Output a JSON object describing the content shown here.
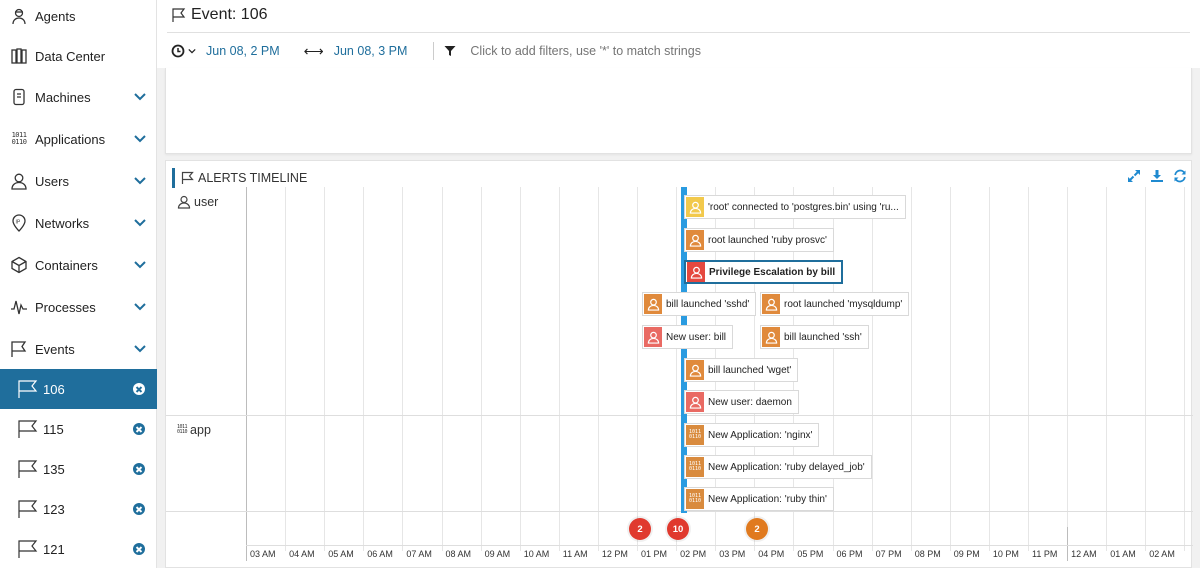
{
  "sidebar": {
    "items": [
      {
        "label": "Agents",
        "icon": "agent-icon",
        "chevron": false
      },
      {
        "label": "Data Center",
        "icon": "data-center-icon",
        "chevron": false
      },
      {
        "label": "Machines",
        "icon": "machine-icon",
        "chevron": true
      },
      {
        "label": "Applications",
        "icon": "binary-icon",
        "chevron": true
      },
      {
        "label": "Users",
        "icon": "user-icon",
        "chevron": true
      },
      {
        "label": "Networks",
        "icon": "network-ip-icon",
        "chevron": true
      },
      {
        "label": "Containers",
        "icon": "container-cube-icon",
        "chevron": true
      },
      {
        "label": "Processes",
        "icon": "pulse-icon",
        "chevron": true
      },
      {
        "label": "Events",
        "icon": "flag-icon",
        "chevron": true
      }
    ],
    "events": [
      {
        "id": "106",
        "active": true
      },
      {
        "id": "115",
        "active": false
      },
      {
        "id": "135",
        "active": false
      },
      {
        "id": "123",
        "active": false
      },
      {
        "id": "121",
        "active": false
      }
    ]
  },
  "header": {
    "title": "Event: 106",
    "start": "Jun 08, 2 PM",
    "end": "Jun 08, 3 PM",
    "filter_placeholder": "Click to add filters, use '*' to match strings"
  },
  "timeline": {
    "title": "ALERTS TIMELINE",
    "rows": [
      {
        "label": "user",
        "icon": "user-icon"
      },
      {
        "label": "app",
        "icon": "binary-icon"
      }
    ],
    "events": [
      {
        "text": "'root' connected to 'postgres.bin' using 'ru...",
        "row": "user",
        "color": "#f2c94c",
        "icon": "user",
        "selected": false
      },
      {
        "text": "root launched 'ruby prosvc'",
        "row": "user",
        "color": "#e08a3c",
        "icon": "user",
        "selected": false
      },
      {
        "text": "Privilege Escalation by bill",
        "row": "user",
        "color": "#e5483f",
        "icon": "user",
        "selected": true
      },
      {
        "text": "bill launched 'sshd'",
        "row": "user",
        "color": "#e08a3c",
        "icon": "user",
        "selected": false
      },
      {
        "text": "root launched 'mysqldump'",
        "row": "user",
        "color": "#e08a3c",
        "icon": "user",
        "selected": false
      },
      {
        "text": "New user: bill",
        "row": "user",
        "color": "#e96a63",
        "icon": "user",
        "selected": false
      },
      {
        "text": "bill launched 'ssh'",
        "row": "user",
        "color": "#e08a3c",
        "icon": "user",
        "selected": false
      },
      {
        "text": "bill launched 'wget'",
        "row": "user",
        "color": "#e08a3c",
        "icon": "user",
        "selected": false
      },
      {
        "text": "New user: daemon",
        "row": "user",
        "color": "#e96a63",
        "icon": "user",
        "selected": false
      },
      {
        "text": "New Application: 'nginx'",
        "row": "app",
        "color": "#d98b3e",
        "icon": "binary",
        "selected": false
      },
      {
        "text": "New Application: 'ruby delayed_job'",
        "row": "app",
        "color": "#d98b3e",
        "icon": "binary",
        "selected": false
      },
      {
        "text": "New Application: 'ruby thin'",
        "row": "app",
        "color": "#d98b3e",
        "icon": "binary",
        "selected": false
      }
    ],
    "clusters": [
      {
        "count": "2",
        "color": "#e0392e"
      },
      {
        "count": "10",
        "color": "#e0392e"
      },
      {
        "count": "2",
        "color": "#e07a1f"
      }
    ],
    "ticks": [
      "03 AM",
      "04 AM",
      "05 AM",
      "06 AM",
      "07 AM",
      "08 AM",
      "09 AM",
      "10 AM",
      "11 AM",
      "12 PM",
      "01 PM",
      "02 PM",
      "03 PM",
      "04 PM",
      "05 PM",
      "06 PM",
      "07 PM",
      "08 PM",
      "09 PM",
      "10 PM",
      "11 PM",
      "12 AM",
      "01 AM",
      "02 AM"
    ],
    "binary_glyph": "1011\n0110"
  }
}
